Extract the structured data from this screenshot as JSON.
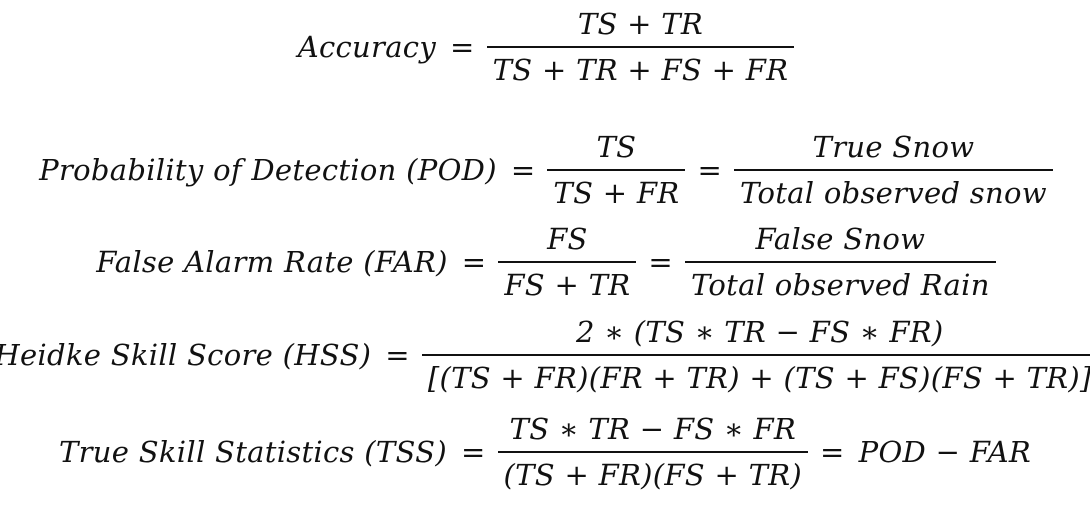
{
  "formulas": [
    {
      "id": "accuracy",
      "lhs": "Accuracy",
      "fractions": [
        {
          "num": "TS + TR",
          "den": "TS + TR + FS + FR"
        }
      ],
      "tail": ""
    },
    {
      "id": "pod",
      "lhs": "Probability of Detection (POD)",
      "fractions": [
        {
          "num": "TS",
          "den": "TS + FR"
        },
        {
          "num": "True Snow",
          "den": "Total observed snow"
        }
      ],
      "tail": ""
    },
    {
      "id": "far",
      "lhs": "False Alarm Rate (FAR)",
      "fractions": [
        {
          "num": "FS",
          "den": "FS + TR"
        },
        {
          "num": "False Snow",
          "den": "Total observed Rain"
        }
      ],
      "tail": ""
    },
    {
      "id": "hss",
      "lhs": "Heidke Skill Score (HSS)",
      "fractions": [
        {
          "num": "2 ∗ (TS ∗ TR − FS ∗ FR)",
          "den": "[(TS + FR)(FR + TR) + (TS + FS)(FS + TR)]"
        }
      ],
      "tail": ""
    },
    {
      "id": "tss",
      "lhs": "True Skill Statistics (TSS)",
      "fractions": [
        {
          "num": "TS ∗ TR − FS ∗ FR",
          "den": "(TS + FR)(FS + TR)"
        }
      ],
      "tail": "POD − FAR"
    }
  ],
  "equals": "="
}
